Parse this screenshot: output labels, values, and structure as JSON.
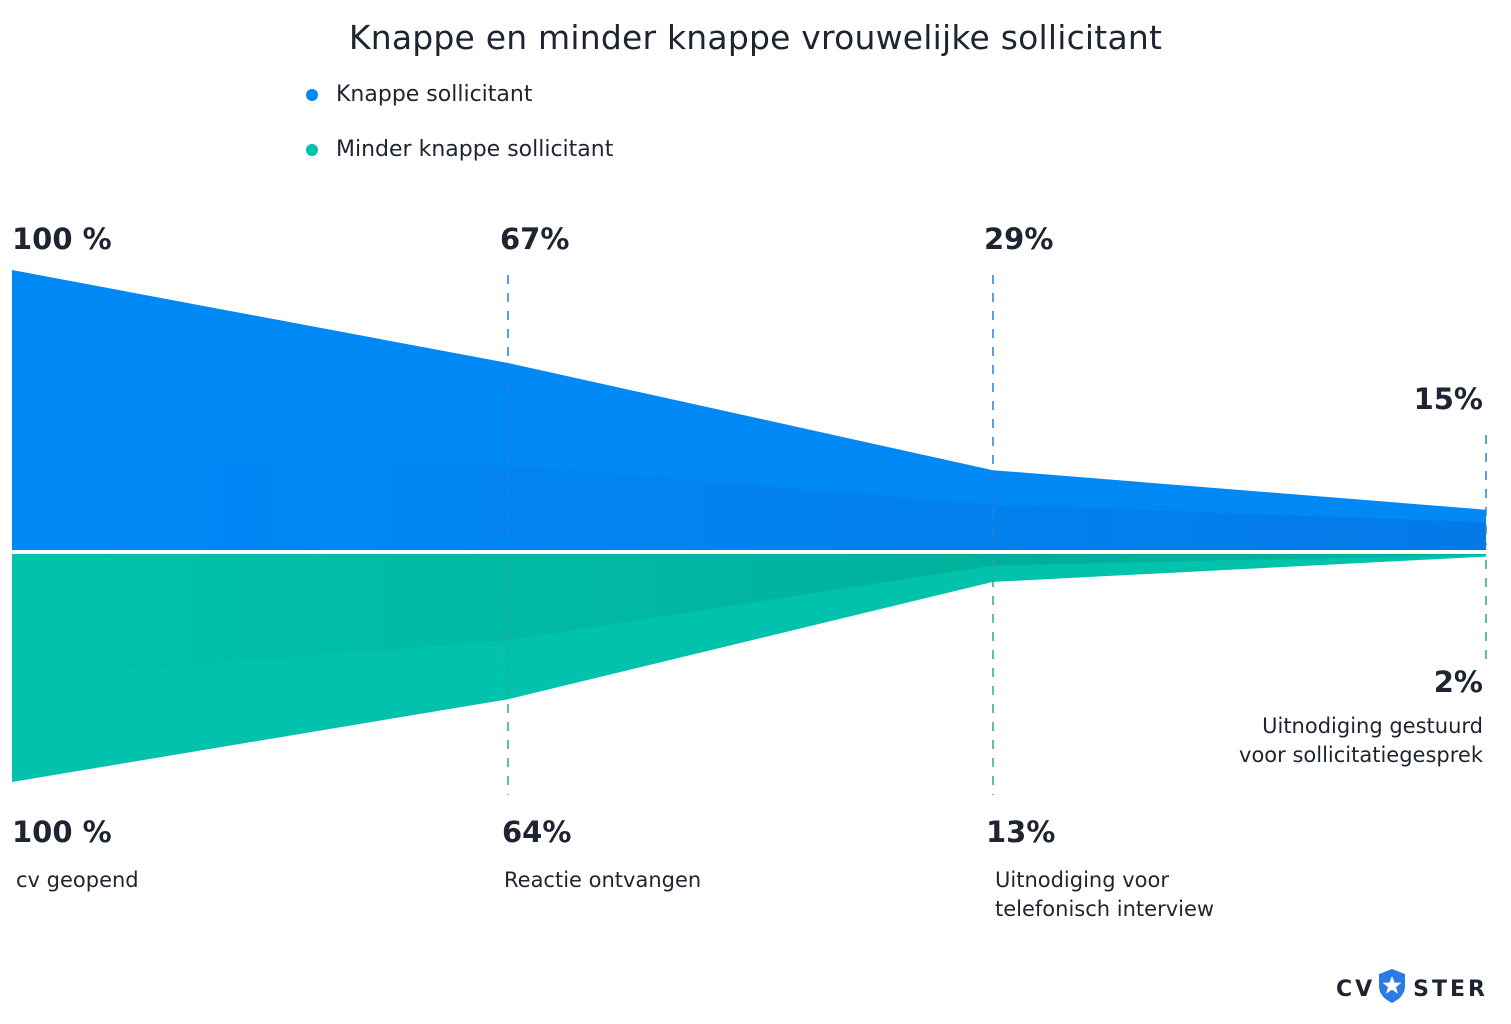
{
  "chart_data": {
    "type": "area",
    "title": "Knappe en minder knappe vrouwelijke sollicitant",
    "categories": [
      "cv geopend",
      "Reactie ontvangen",
      "Uitnodiging voor telefonisch interview",
      "Uitnodiging gestuurd voor sollicitatiegesprek"
    ],
    "series": [
      {
        "name": "Knappe sollicitant",
        "values": [
          100,
          67,
          29,
          15
        ],
        "labels": [
          "100 %",
          "67%",
          "29%",
          "15%"
        ],
        "color": "#0088f5",
        "position": "above"
      },
      {
        "name": "Minder knappe sollicitant",
        "values": [
          100,
          64,
          13,
          2
        ],
        "labels": [
          "100 %",
          "64%",
          "13%",
          "2%"
        ],
        "color": "#00c2ad",
        "position": "below"
      }
    ],
    "stage_labels": [
      [
        "cv geopend"
      ],
      [
        "Reactie ontvangen"
      ],
      [
        "Uitnodiging voor",
        "telefonisch interview"
      ],
      [
        "Uitnodiging gestuurd",
        "voor sollicitatiegesprek"
      ]
    ],
    "ylim": [
      0,
      100
    ],
    "legend_placement": "top-left",
    "grid": false
  },
  "brand": {
    "left": "CV",
    "right": "STER",
    "icon": "star-shield-icon",
    "color": "#2a7be4"
  }
}
